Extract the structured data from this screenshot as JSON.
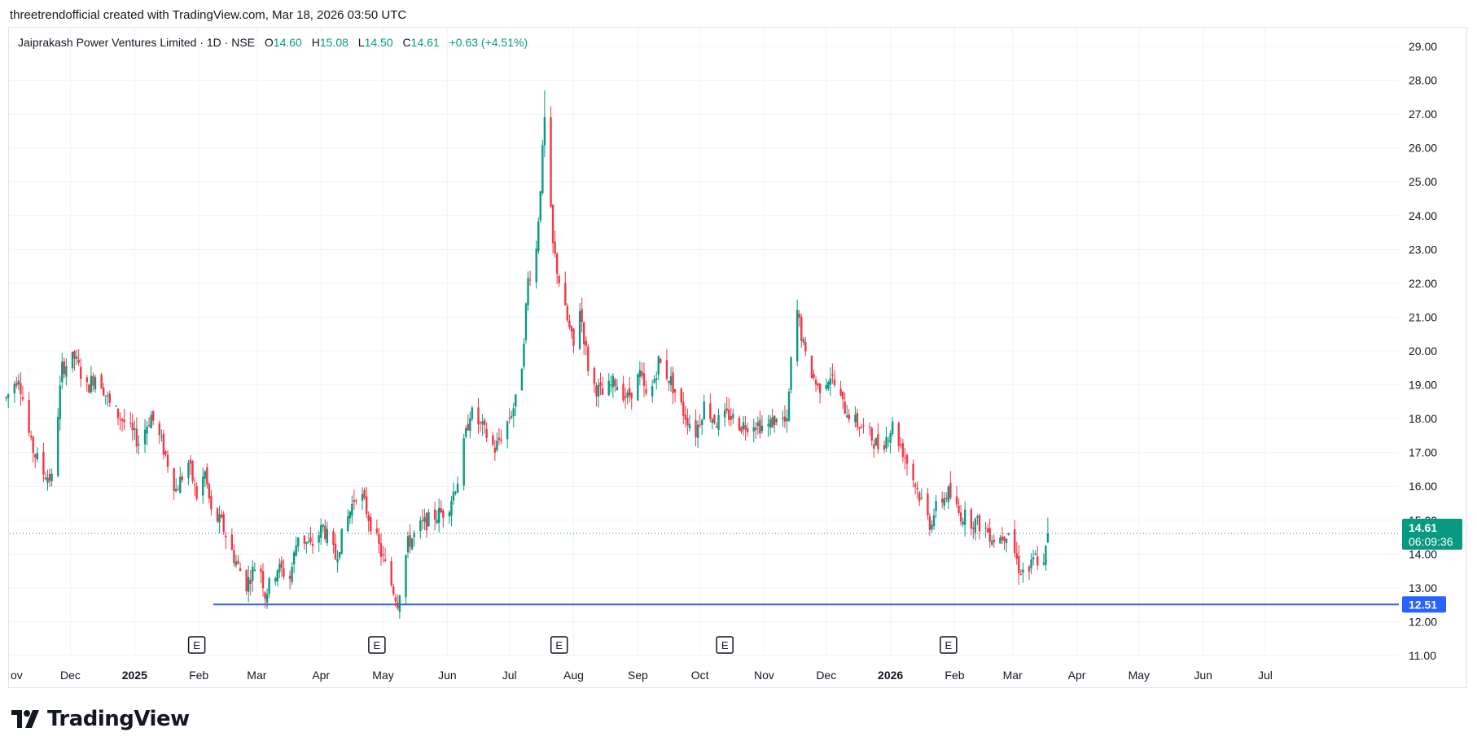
{
  "header": {
    "attribution": "threetrendofficial created with TradingView.com, Mar 18, 2026 03:50 UTC"
  },
  "legend": {
    "symbol": "Jaiprakash Power Ventures Limited · 1D · NSE",
    "open_label": "O",
    "open": "14.60",
    "high_label": "H",
    "high": "15.08",
    "low_label": "L",
    "low": "14.50",
    "close_label": "C",
    "close": "14.61",
    "change": "+0.63 (+4.51%)"
  },
  "price_tag": {
    "value": "14.61",
    "countdown": "06:09:36",
    "color": "#089981"
  },
  "support_tag": {
    "value": "12.51",
    "color": "#2962ff"
  },
  "footer": {
    "brand": "TradingView"
  },
  "chart_data": {
    "type": "candlestick",
    "up_color": "#089981",
    "down_color": "#f23645",
    "ylim": [
      11,
      29
    ],
    "y_ticks": [
      "29.00",
      "28.00",
      "27.00",
      "26.00",
      "25.00",
      "24.00",
      "23.00",
      "22.00",
      "21.00",
      "20.00",
      "19.00",
      "18.00",
      "17.00",
      "16.00",
      "15.00",
      "14.00",
      "13.00",
      "12.00",
      "11.00"
    ],
    "x_ticks": [
      {
        "label": "ov",
        "date": "2024-11-01"
      },
      {
        "label": "Dec",
        "date": "2024-12-01"
      },
      {
        "label": "2025",
        "date": "2025-01-01",
        "bold": true
      },
      {
        "label": "Feb",
        "date": "2025-02-01"
      },
      {
        "label": "Mar",
        "date": "2025-03-01"
      },
      {
        "label": "Apr",
        "date": "2025-04-01"
      },
      {
        "label": "May",
        "date": "2025-05-01"
      },
      {
        "label": "Jun",
        "date": "2025-06-01"
      },
      {
        "label": "Jul",
        "date": "2025-07-01"
      },
      {
        "label": "Aug",
        "date": "2025-08-01"
      },
      {
        "label": "Sep",
        "date": "2025-09-01"
      },
      {
        "label": "Oct",
        "date": "2025-10-01"
      },
      {
        "label": "Nov",
        "date": "2025-11-01"
      },
      {
        "label": "Dec",
        "date": "2025-12-01"
      },
      {
        "label": "2026",
        "date": "2026-01-01",
        "bold": true
      },
      {
        "label": "Feb",
        "date": "2026-02-01"
      },
      {
        "label": "Mar",
        "date": "2026-03-01"
      },
      {
        "label": "Apr",
        "date": "2026-04-01"
      },
      {
        "label": "May",
        "date": "2026-05-01"
      },
      {
        "label": "Jun",
        "date": "2026-06-01"
      },
      {
        "label": "Jul",
        "date": "2026-07-01"
      }
    ],
    "earnings_markers": [
      {
        "label": "E",
        "date": "2025-01-31"
      },
      {
        "label": "E",
        "date": "2025-04-28"
      },
      {
        "label": "E",
        "date": "2025-07-25"
      },
      {
        "label": "E",
        "date": "2025-10-13"
      },
      {
        "label": "E",
        "date": "2026-01-29"
      }
    ],
    "horizontal_line": {
      "value": 12.51,
      "from_date": "2025-02-08",
      "color": "#2962ff"
    },
    "last_price": 14.61,
    "price_path": [
      [
        "2024-10-31",
        18.6
      ],
      [
        "2024-11-06",
        19.3
      ],
      [
        "2024-11-12",
        17.2
      ],
      [
        "2024-11-18",
        16.4
      ],
      [
        "2024-11-22",
        16.2
      ],
      [
        "2024-11-27",
        19.5
      ],
      [
        "2024-12-03",
        19.8
      ],
      [
        "2024-12-09",
        18.9
      ],
      [
        "2024-12-14",
        19.4
      ],
      [
        "2024-12-20",
        18.4
      ],
      [
        "2024-12-27",
        17.9
      ],
      [
        "2025-01-03",
        17.3
      ],
      [
        "2025-01-09",
        18.1
      ],
      [
        "2025-01-15",
        17.1
      ],
      [
        "2025-01-21",
        15.9
      ],
      [
        "2025-01-27",
        16.7
      ],
      [
        "2025-01-31",
        15.7
      ],
      [
        "2025-02-04",
        16.4
      ],
      [
        "2025-02-07",
        15.2
      ],
      [
        "2025-02-12",
        14.9
      ],
      [
        "2025-02-18",
        13.9
      ],
      [
        "2025-02-24",
        13.1
      ],
      [
        "2025-03-02",
        13.9
      ],
      [
        "2025-03-05",
        12.8
      ],
      [
        "2025-03-11",
        13.6
      ],
      [
        "2025-03-17",
        13.3
      ],
      [
        "2025-03-21",
        14.6
      ],
      [
        "2025-03-27",
        14.2
      ],
      [
        "2025-04-02",
        14.8
      ],
      [
        "2025-04-08",
        13.9
      ],
      [
        "2025-04-13",
        14.9
      ],
      [
        "2025-04-19",
        16.0
      ],
      [
        "2025-04-24",
        15.1
      ],
      [
        "2025-04-29",
        14.2
      ],
      [
        "2025-05-05",
        13.1
      ],
      [
        "2025-05-08",
        12.6
      ],
      [
        "2025-05-13",
        14.3
      ],
      [
        "2025-05-19",
        14.8
      ],
      [
        "2025-05-25",
        15.1
      ],
      [
        "2025-06-01",
        15.3
      ],
      [
        "2025-06-06",
        16.2
      ],
      [
        "2025-06-12",
        18.2
      ],
      [
        "2025-06-18",
        17.7
      ],
      [
        "2025-06-24",
        17.1
      ],
      [
        "2025-06-30",
        17.9
      ],
      [
        "2025-07-06",
        18.8
      ],
      [
        "2025-07-10",
        22.1
      ],
      [
        "2025-07-14",
        23.0
      ],
      [
        "2025-07-18",
        26.8
      ],
      [
        "2025-07-22",
        23.1
      ],
      [
        "2025-07-27",
        21.4
      ],
      [
        "2025-08-01",
        20.1
      ],
      [
        "2025-08-04",
        21.3
      ],
      [
        "2025-08-09",
        19.1
      ],
      [
        "2025-08-15",
        18.7
      ],
      [
        "2025-08-21",
        19.1
      ],
      [
        "2025-08-27",
        18.6
      ],
      [
        "2025-09-02",
        19.3
      ],
      [
        "2025-09-06",
        18.4
      ],
      [
        "2025-09-11",
        19.7
      ],
      [
        "2025-09-17",
        19.1
      ],
      [
        "2025-09-23",
        18.2
      ],
      [
        "2025-09-29",
        17.6
      ],
      [
        "2025-10-03",
        18.4
      ],
      [
        "2025-10-09",
        17.9
      ],
      [
        "2025-10-15",
        18.1
      ],
      [
        "2025-10-21",
        17.8
      ],
      [
        "2025-10-27",
        17.9
      ],
      [
        "2025-11-02",
        17.7
      ],
      [
        "2025-11-08",
        18.1
      ],
      [
        "2025-11-12",
        17.8
      ],
      [
        "2025-11-16",
        21.5
      ],
      [
        "2025-11-21",
        19.8
      ],
      [
        "2025-11-27",
        18.9
      ],
      [
        "2025-12-03",
        19.3
      ],
      [
        "2025-12-09",
        18.4
      ],
      [
        "2025-12-15",
        17.9
      ],
      [
        "2025-12-21",
        17.6
      ],
      [
        "2025-12-27",
        17.1
      ],
      [
        "2026-01-02",
        17.8
      ],
      [
        "2026-01-08",
        16.9
      ],
      [
        "2026-01-14",
        15.9
      ],
      [
        "2026-01-20",
        14.9
      ],
      [
        "2026-01-24",
        15.5
      ],
      [
        "2026-01-29",
        15.8
      ],
      [
        "2026-02-03",
        15.2
      ],
      [
        "2026-02-09",
        15.0
      ],
      [
        "2026-02-15",
        14.8
      ],
      [
        "2026-02-21",
        14.4
      ],
      [
        "2026-02-27",
        14.7
      ],
      [
        "2026-03-04",
        13.6
      ],
      [
        "2026-03-08",
        13.4
      ],
      [
        "2026-03-12",
        13.9
      ],
      [
        "2026-03-16",
        13.6
      ],
      [
        "2026-03-18",
        14.61
      ]
    ]
  }
}
